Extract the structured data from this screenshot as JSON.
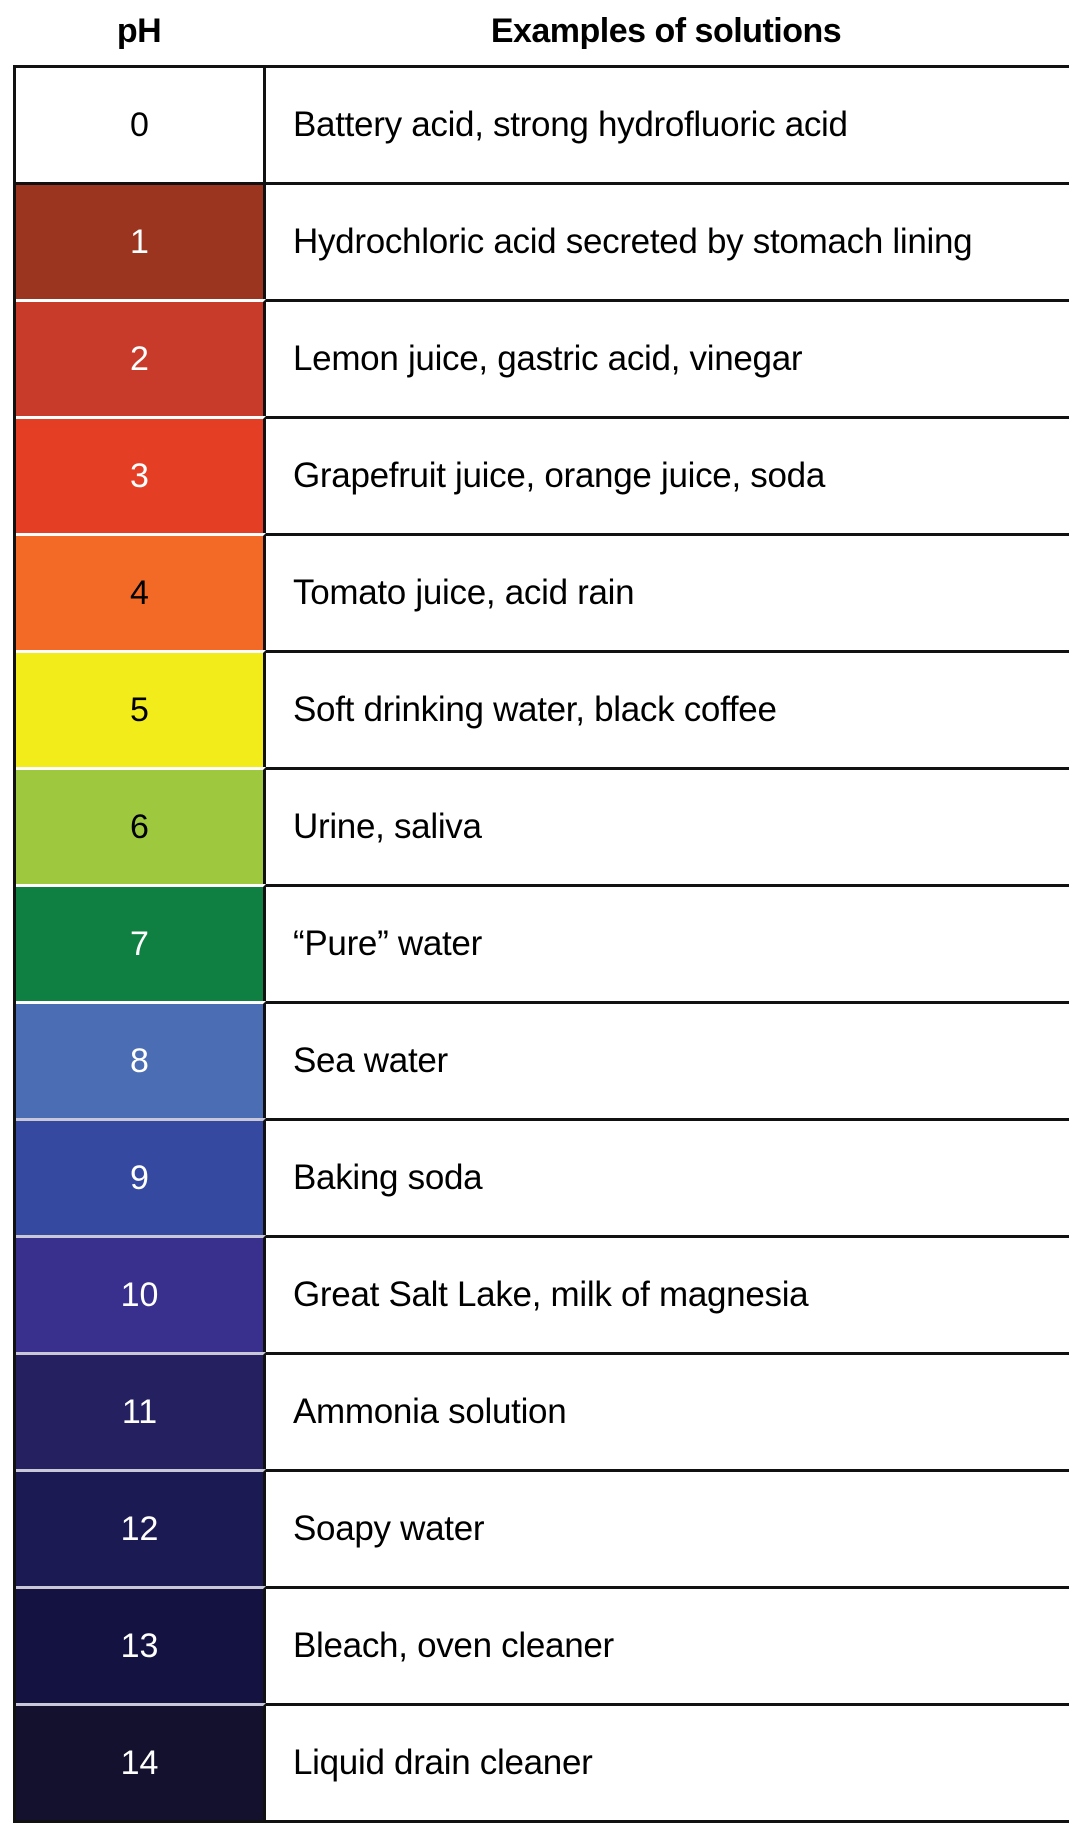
{
  "header": {
    "ph": "pH",
    "examples": "Examples of solutions"
  },
  "rows": [
    {
      "ph": "0",
      "example": "Battery acid, strong hydrofluoric acid",
      "color": "#ffffff",
      "text_color": "#000000"
    },
    {
      "ph": "1",
      "example": "Hydrochloric acid secreted by stomach lining",
      "color": "#9b3520",
      "text_color": "#ffffff"
    },
    {
      "ph": "2",
      "example": "Lemon juice, gastric acid, vinegar",
      "color": "#c83a2a",
      "text_color": "#ffffff"
    },
    {
      "ph": "3",
      "example": "Grapefruit juice, orange juice, soda",
      "color": "#e43e25",
      "text_color": "#ffffff"
    },
    {
      "ph": "4",
      "example": "Tomato juice, acid rain",
      "color": "#f26a25",
      "text_color": "#000000"
    },
    {
      "ph": "5",
      "example": "Soft drinking water, black coffee",
      "color": "#f3ec1b",
      "text_color": "#000000"
    },
    {
      "ph": "6",
      "example": "Urine, saliva",
      "color": "#9ec93f",
      "text_color": "#000000"
    },
    {
      "ph": "7",
      "example": "“Pure” water",
      "color": "#108042",
      "text_color": "#ffffff"
    },
    {
      "ph": "8",
      "example": "Sea water",
      "color": "#4a6db3",
      "text_color": "#ffffff"
    },
    {
      "ph": "9",
      "example": "Baking soda",
      "color": "#3549a0",
      "text_color": "#ffffff"
    },
    {
      "ph": "10",
      "example": "Great Salt Lake, milk of magnesia",
      "color": "#38308c",
      "text_color": "#ffffff"
    },
    {
      "ph": "11",
      "example": "Ammonia solution",
      "color": "#252161",
      "text_color": "#ffffff"
    },
    {
      "ph": "12",
      "example": "Soapy water",
      "color": "#1c1a52",
      "text_color": "#ffffff"
    },
    {
      "ph": "13",
      "example": "Bleach, oven cleaner",
      "color": "#141241",
      "text_color": "#ffffff"
    },
    {
      "ph": "14",
      "example": "Liquid drain cleaner",
      "color": "#13112d",
      "text_color": "#ffffff"
    }
  ]
}
